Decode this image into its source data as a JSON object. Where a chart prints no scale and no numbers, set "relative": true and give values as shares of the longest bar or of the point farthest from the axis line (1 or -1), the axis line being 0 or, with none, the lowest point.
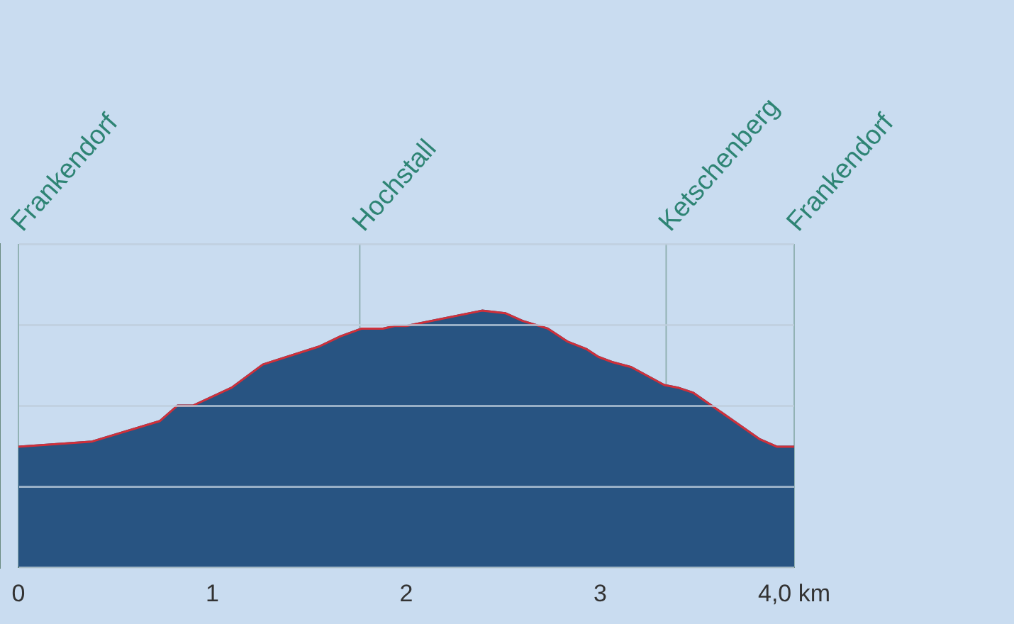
{
  "chart_data": {
    "type": "area",
    "relative": true,
    "grid": "y",
    "marker": "none",
    "xlim": [
      0,
      4
    ],
    "xticks": [
      0,
      1,
      2,
      3,
      {
        "value": 4,
        "label": "4,0 km"
      }
    ],
    "x": [
      0,
      0.38,
      0.73,
      0.82,
      0.9,
      1.1,
      1.26,
      1.55,
      1.66,
      1.77,
      1.88,
      1.94,
      2.0,
      2.39,
      2.51,
      2.6,
      2.73,
      2.83,
      2.93,
      2.99,
      3.06,
      3.16,
      3.33,
      3.4,
      3.48,
      3.82,
      3.91,
      4.0
    ],
    "series": [
      {
        "color": "#285482",
        "values": [
          0.47,
          0.49,
          0.57,
          0.63,
          0.63,
          0.7,
          0.79,
          0.86,
          0.9,
          0.93,
          0.93,
          0.94,
          0.94,
          1.0,
          0.99,
          0.96,
          0.93,
          0.88,
          0.85,
          0.82,
          0.8,
          0.78,
          0.71,
          0.7,
          0.68,
          0.5,
          0.47,
          0.47
        ]
      },
      {
        "type": "line",
        "color": "#d0303a",
        "values": [
          0.47,
          0.49,
          0.57,
          0.63,
          0.63,
          0.7,
          0.79,
          0.86,
          0.9,
          0.93,
          0.93,
          0.94,
          0.94,
          1.0,
          0.99,
          0.96,
          0.93,
          0.88,
          0.85,
          0.82,
          0.8,
          0.78,
          0.71,
          0.7,
          0.68,
          0.5,
          0.47,
          0.47
        ]
      }
    ],
    "ref_lines": [
      {
        "axis": "x",
        "value": 0,
        "label": "Frankendorf"
      },
      {
        "axis": "x",
        "value": 1.76,
        "label": "Hochstall"
      },
      {
        "axis": "x",
        "value": 3.34,
        "label": "Ketschenberg"
      },
      {
        "axis": "x",
        "value": 4,
        "label": "Frankendorf"
      }
    ]
  }
}
